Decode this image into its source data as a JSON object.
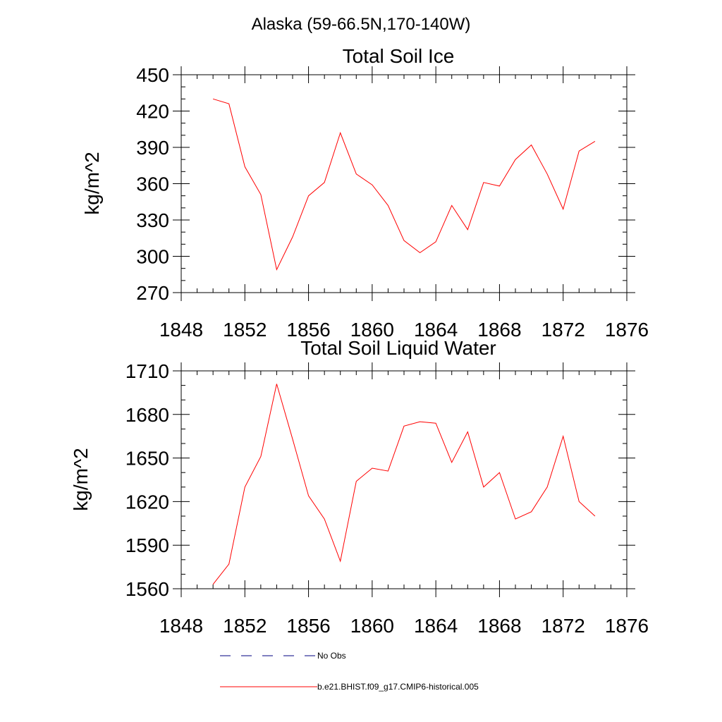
{
  "page_title": "Alaska (59-66.5N,170-140W)",
  "chart_data": [
    {
      "type": "line",
      "title": "Total Soil Ice",
      "xlabel": "",
      "ylabel": "kg/m^2",
      "xlim": [
        1848,
        1876
      ],
      "ylim": [
        270,
        450
      ],
      "x_ticks": [
        1848,
        1852,
        1856,
        1860,
        1864,
        1868,
        1872,
        1876
      ],
      "y_ticks": [
        270,
        300,
        330,
        360,
        390,
        420,
        450
      ],
      "x_minor_step": 1,
      "y_minor_step": 10,
      "grid": false,
      "series": [
        {
          "name": "b.e21.BHIST.f09_g17.CMIP6-historical.005",
          "color": "#ff0000",
          "x": [
            1850,
            1851,
            1852,
            1853,
            1854,
            1855,
            1856,
            1857,
            1858,
            1859,
            1860,
            1861,
            1862,
            1863,
            1864,
            1865,
            1866,
            1867,
            1868,
            1869,
            1870,
            1871,
            1872,
            1873,
            1874
          ],
          "values": [
            430,
            426,
            374,
            351,
            289,
            316,
            350,
            361,
            402,
            368,
            359,
            342,
            313,
            303,
            312,
            342,
            322,
            361,
            358,
            380,
            392,
            368,
            339,
            387,
            395
          ]
        }
      ]
    },
    {
      "type": "line",
      "title": "Total Soil Liquid Water",
      "xlabel": "",
      "ylabel": "kg/m^2",
      "xlim": [
        1848,
        1876
      ],
      "ylim": [
        1560,
        1710
      ],
      "x_ticks": [
        1848,
        1852,
        1856,
        1860,
        1864,
        1868,
        1872,
        1876
      ],
      "y_ticks": [
        1560,
        1590,
        1620,
        1650,
        1680,
        1710
      ],
      "x_minor_step": 1,
      "y_minor_step": 10,
      "grid": false,
      "series": [
        {
          "name": "b.e21.BHIST.f09_g17.CMIP6-historical.005",
          "color": "#ff0000",
          "x": [
            1850,
            1851,
            1852,
            1853,
            1854,
            1855,
            1856,
            1857,
            1858,
            1859,
            1860,
            1861,
            1862,
            1863,
            1864,
            1865,
            1866,
            1867,
            1868,
            1869,
            1870,
            1871,
            1872,
            1873,
            1874
          ],
          "values": [
            1563,
            1577,
            1630,
            1651,
            1701,
            1663,
            1624,
            1608,
            1579,
            1634,
            1643,
            1641,
            1672,
            1675,
            1674,
            1647,
            1668,
            1630,
            1640,
            1608,
            1613,
            1630,
            1665,
            1620,
            1610
          ]
        }
      ]
    }
  ],
  "legend": [
    {
      "label": "No Obs",
      "style": "dashed",
      "color": "#000080"
    },
    {
      "label": "b.e21.BHIST.f09_g17.CMIP6-historical.005",
      "style": "solid",
      "color": "#ff0000"
    }
  ]
}
